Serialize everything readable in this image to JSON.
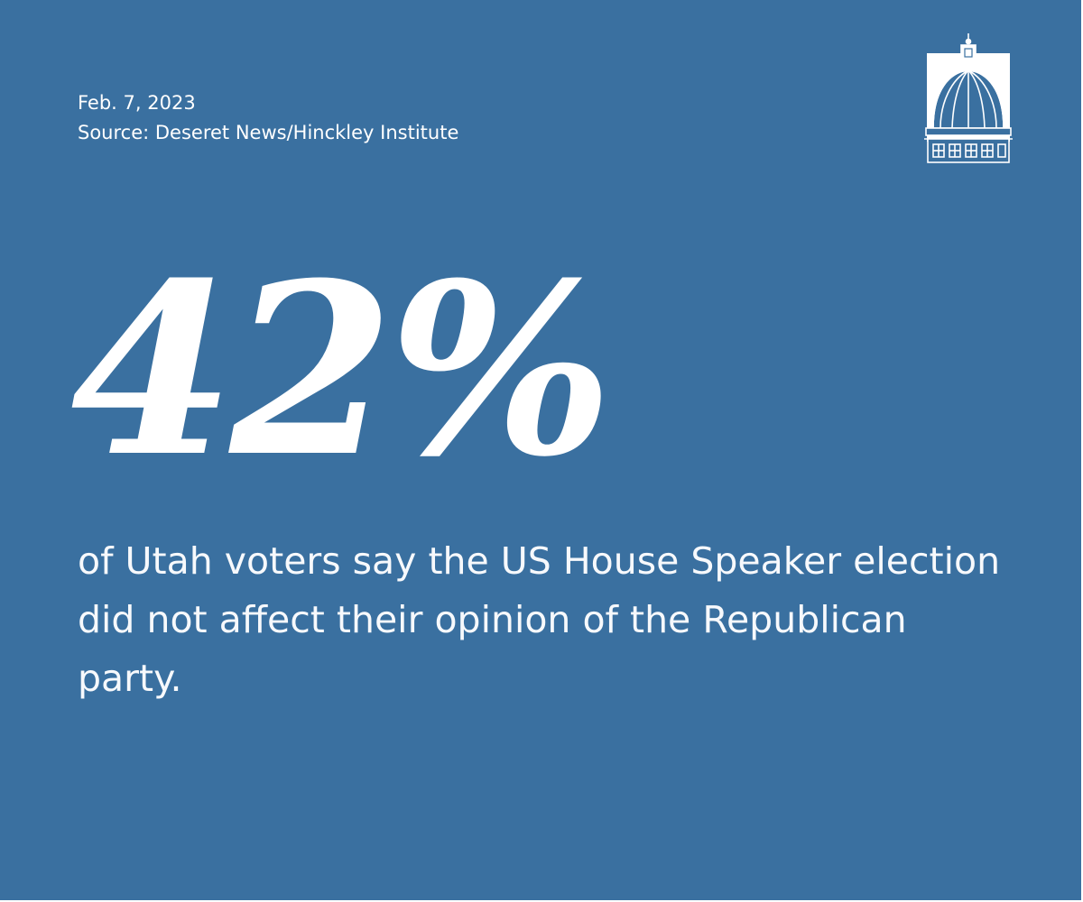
{
  "header": {
    "date": "Feb. 7, 2023",
    "source": "Source: Deseret News/Hinckley Institute"
  },
  "stat": {
    "value": "42%",
    "description": "of Utah voters say the US House Speaker election did not affect their opinion of the Republican party."
  },
  "logo": {
    "icon": "capitol-dome-icon"
  },
  "colors": {
    "background": "#3a70a0",
    "text": "#ffffff"
  }
}
